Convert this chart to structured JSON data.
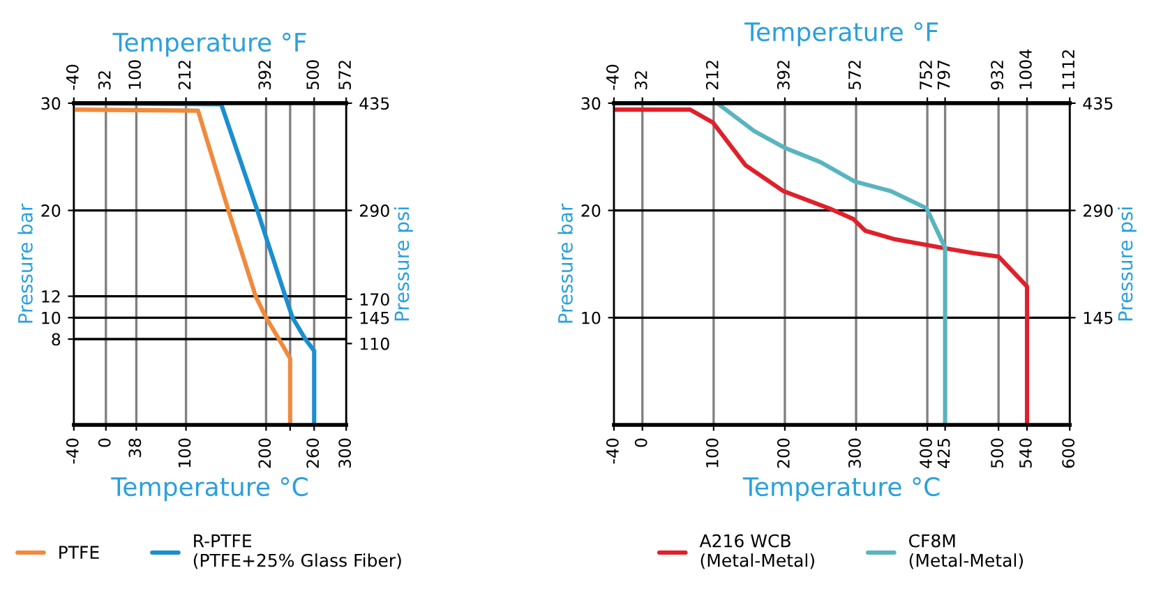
{
  "chart_data": [
    {
      "type": "line",
      "xlabel": "Temperature °C",
      "x2label": "Temperature °F",
      "ylabel": "Pressure bar",
      "y2label": "Pressure psi",
      "xlim": [
        -40,
        300
      ],
      "xticks": [
        -40,
        0,
        38,
        100,
        200,
        {
          "value": 230,
          "label": null
        },
        260,
        300
      ],
      "x2lim": [
        -40,
        572
      ],
      "x2ticks": [
        -40,
        32,
        100,
        212,
        392,
        500,
        572
      ],
      "ylim": [
        0,
        30
      ],
      "yticks": [
        8,
        10,
        12,
        20,
        30
      ],
      "y2lim": [
        0,
        435
      ],
      "y2ticks": [
        110,
        145,
        170,
        290,
        435
      ],
      "grid": true,
      "legend": "bottom",
      "series": [
        {
          "name": "PTFE",
          "color": "#f08a3c",
          "x": [
            -40,
            115,
            153,
            187,
            200,
            216,
            230,
            230
          ],
          "values": [
            29.4,
            29.3,
            20,
            12,
            10,
            8,
            6.2,
            0
          ]
        },
        {
          "name": "R-PTFE\n(PTFE+25% Glass Fiber)",
          "color": "#1a8fd0",
          "x": [
            -40,
            144,
            189,
            224,
            233,
            249,
            260,
            260
          ],
          "values": [
            30,
            29.9,
            20,
            12,
            10,
            8,
            6.9,
            0
          ]
        }
      ]
    },
    {
      "type": "line",
      "xlabel": "Temperature °C",
      "x2label": "Temperature °F",
      "ylabel": "Pressure bar",
      "y2label": "Pressure psi",
      "xlim": [
        -40,
        600
      ],
      "xticks": [
        -40,
        0,
        100,
        200,
        300,
        400,
        425,
        500,
        540,
        600
      ],
      "x2lim": [
        -40,
        1112
      ],
      "x2ticks": [
        -40,
        32,
        212,
        392,
        572,
        752,
        797,
        932,
        1004,
        1112
      ],
      "ylim": [
        0,
        30
      ],
      "yticks": [
        10,
        20,
        30
      ],
      "y2lim": [
        0,
        435
      ],
      "y2ticks": [
        145,
        290,
        435
      ],
      "grid": true,
      "legend": "bottom",
      "series": [
        {
          "name": "A216 WCB\n(Metal-Metal)",
          "color": "#e0202a",
          "x": [
            -40,
            67,
            99,
            145,
            198,
            262,
            296,
            313,
            355,
            423,
            466,
            500,
            540,
            540
          ],
          "values": [
            29.4,
            29.4,
            28.2,
            24.2,
            21.8,
            20.2,
            19.2,
            18.1,
            17.3,
            16.5,
            16.0,
            15.7,
            12.9,
            0
          ]
        },
        {
          "name": "CF8M\n(Metal-Metal)",
          "color": "#5ab4c0",
          "x": [
            -40,
            105,
            157,
            201,
            250,
            298,
            349,
            399,
            425,
            425
          ],
          "values": [
            30,
            30,
            27.4,
            25.8,
            24.5,
            22.7,
            21.8,
            20.2,
            16.5,
            0
          ]
        }
      ]
    }
  ]
}
